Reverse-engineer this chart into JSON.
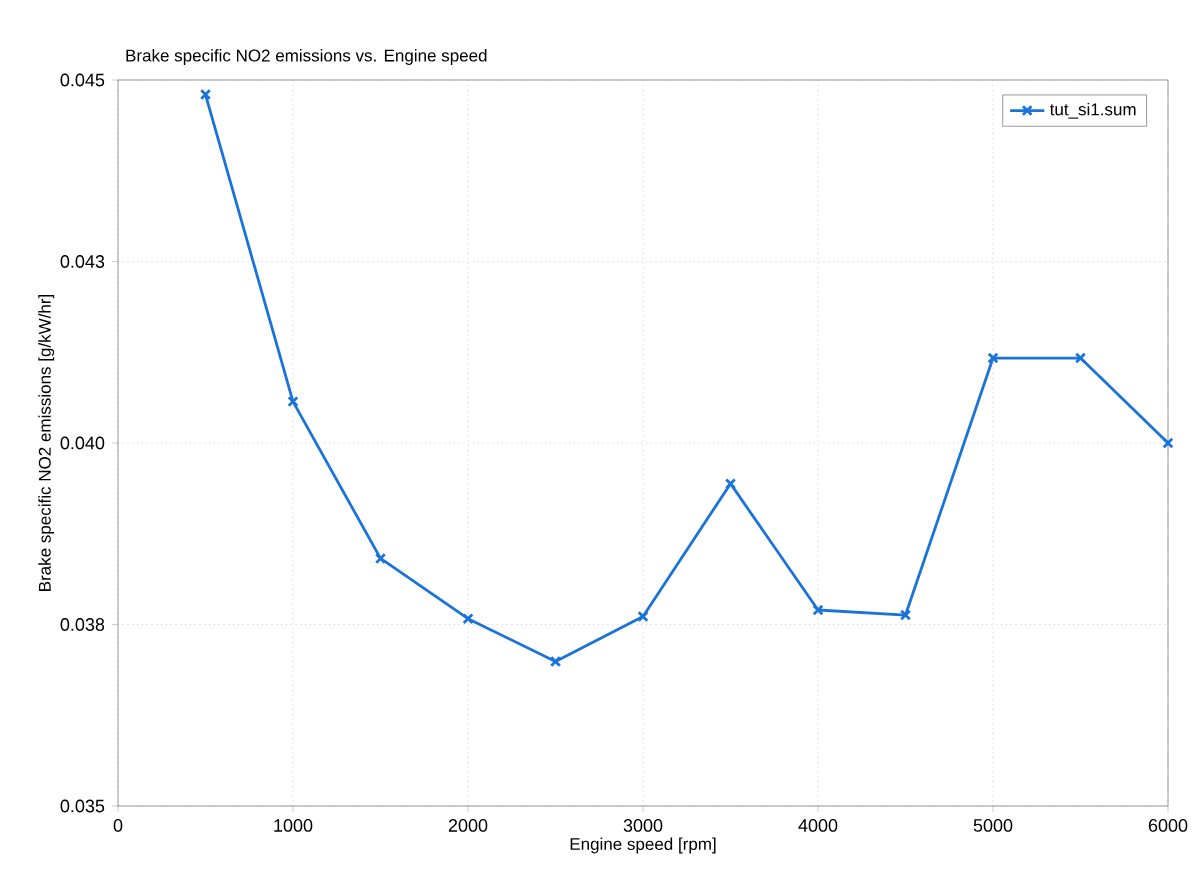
{
  "chart_data": {
    "type": "line",
    "title": "Brake specific NO2 emissions vs. Engine speed",
    "xlabel": "Engine speed  [rpm]",
    "ylabel": "Brake specific NO2 emissions  [g/kW/hr]",
    "x": [
      500,
      1000,
      1500,
      2000,
      2500,
      3000,
      3500,
      4000,
      4500,
      5000,
      5500,
      6000
    ],
    "series": [
      {
        "name": "tut_si1.sum",
        "color": "#1a73d9",
        "values": [
          0.0448,
          0.04057,
          0.03841,
          0.03758,
          0.03699,
          0.03761,
          0.03944,
          0.0377,
          0.03763,
          0.04117,
          0.04117,
          0.04
        ]
      }
    ],
    "xlim": [
      0,
      6000
    ],
    "xticks": [
      0,
      1000,
      2000,
      3000,
      4000,
      5000,
      6000
    ],
    "ylim": [
      0.035,
      0.045
    ],
    "yticks": [
      0.035,
      {
        "value": 0.0375,
        "label": "0.038"
      },
      {
        "value": 0.04,
        "label": "0.040"
      },
      {
        "value": 0.0425,
        "label": "0.043"
      },
      0.045
    ],
    "grid": true,
    "legend": "top right",
    "marker": "cross",
    "line_style": "solid"
  }
}
